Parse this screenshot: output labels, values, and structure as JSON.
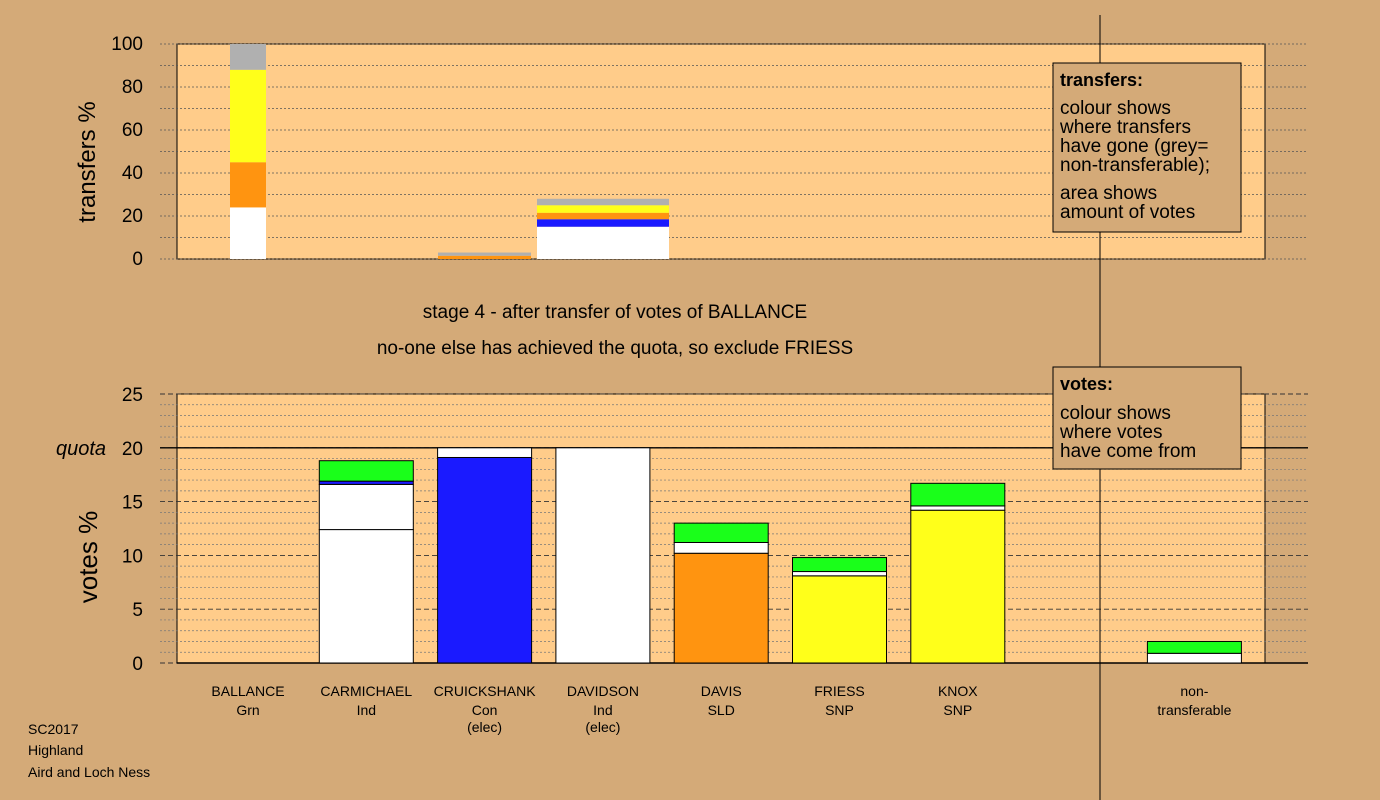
{
  "chart_data": [
    {
      "type": "bar",
      "stacked": true,
      "ylabel": "transfers %",
      "ylim": [
        0,
        100
      ],
      "yticks": [
        0,
        20,
        40,
        60,
        80,
        100
      ],
      "categories": [
        "BALLANCE",
        "CARMICHAEL",
        "CRUICKSHANK",
        "DAVIDSON",
        "DAVIS",
        "FRIESS",
        "KNOX",
        "non-transferable"
      ],
      "stacks": [
        {
          "category": "BALLANCE",
          "widths_rel": 0.37,
          "segments": [
            {
              "color": "#ffffff",
              "from": 0,
              "to": 24
            },
            {
              "color": "#ff9410",
              "from": 24,
              "to": 45
            },
            {
              "color": "#ffff1a",
              "from": 45,
              "to": 88
            },
            {
              "color": "#b0b0b0",
              "from": 88,
              "to": 100
            }
          ]
        },
        {
          "category": "CRUICKSHANK",
          "widths_rel": 1.0,
          "segments": [
            {
              "color": "#ff9410",
              "from": 0,
              "to": 1.5
            },
            {
              "color": "#b0b0b0",
              "from": 1.5,
              "to": 3
            }
          ]
        },
        {
          "category": "CRUICKSHANK-DAVIDSON",
          "widths_rel": 1.4,
          "segments": [
            {
              "color": "#ffffff",
              "from": 0,
              "to": 15
            },
            {
              "color": "#1a1aff",
              "from": 15,
              "to": 18.5
            },
            {
              "color": "#ff9410",
              "from": 18.5,
              "to": 21.5
            },
            {
              "color": "#ffff1a",
              "from": 21.5,
              "to": 25
            },
            {
              "color": "#b0b0b0",
              "from": 25,
              "to": 28
            }
          ]
        }
      ]
    },
    {
      "type": "bar",
      "stacked": true,
      "ylabel": "votes %",
      "ylim": [
        0,
        25
      ],
      "yticks": [
        0,
        5,
        10,
        15,
        20,
        25
      ],
      "quota": 20,
      "quota_label": "quota",
      "candidates": [
        {
          "name": "BALLANCE",
          "party": "Grn",
          "note": "",
          "segments": []
        },
        {
          "name": "CARMICHAEL",
          "party": "Ind",
          "note": "",
          "segments": [
            {
              "color": "#ffffff",
              "from": 0,
              "to": 12.4
            },
            {
              "color": "#ffffff",
              "from": 12.4,
              "to": 16.6
            },
            {
              "color": "#1a1aff",
              "from": 16.6,
              "to": 16.9
            },
            {
              "color": "#1aff1a",
              "from": 16.9,
              "to": 18.8
            }
          ]
        },
        {
          "name": "CRUICKSHANK",
          "party": "Con",
          "note": "(elec)",
          "segments": [
            {
              "color": "#1a1aff",
              "from": 0,
              "to": 19.1
            },
            {
              "color": "#ffffff",
              "from": 19.1,
              "to": 20.0
            }
          ]
        },
        {
          "name": "DAVIDSON",
          "party": "Ind",
          "note": "(elec)",
          "segments": [
            {
              "color": "#ffffff",
              "from": 0,
              "to": 20.0
            }
          ]
        },
        {
          "name": "DAVIS",
          "party": "SLD",
          "note": "",
          "segments": [
            {
              "color": "#ff9410",
              "from": 0,
              "to": 10.2
            },
            {
              "color": "#ffffff",
              "from": 10.2,
              "to": 11.2
            },
            {
              "color": "#1aff1a",
              "from": 11.2,
              "to": 13.0
            }
          ]
        },
        {
          "name": "FRIESS",
          "party": "SNP",
          "note": "",
          "segments": [
            {
              "color": "#ffff1a",
              "from": 0,
              "to": 8.1
            },
            {
              "color": "#ffffff",
              "from": 8.1,
              "to": 8.5
            },
            {
              "color": "#1aff1a",
              "from": 8.5,
              "to": 9.8
            }
          ]
        },
        {
          "name": "KNOX",
          "party": "SNP",
          "note": "",
          "segments": [
            {
              "color": "#ffff1a",
              "from": 0,
              "to": 14.2
            },
            {
              "color": "#ffffff",
              "from": 14.2,
              "to": 14.6
            },
            {
              "color": "#1aff1a",
              "from": 14.6,
              "to": 16.7
            }
          ]
        },
        {
          "name": "",
          "party": "",
          "note": "",
          "segments": []
        },
        {
          "name": "non-",
          "party": "transferable",
          "note": "",
          "segments": [
            {
              "color": "#ffffff",
              "from": 0,
              "to": 0.9
            },
            {
              "color": "#1aff1a",
              "from": 0.9,
              "to": 2.0
            }
          ]
        }
      ]
    }
  ],
  "stage_title": "stage 4 - after transfer of votes of BALLANCE",
  "stage_subtitle": "no-one else has achieved the quota, so exclude FRIESS",
  "transfers_box": {
    "title": "transfers:",
    "lines": [
      "colour shows",
      "where transfers",
      "have gone (grey=",
      "non-transferable);"
    ],
    "lines2": [
      "area shows",
      "amount of votes"
    ]
  },
  "votes_box": {
    "title": "votes:",
    "lines": [
      "colour shows",
      "where votes",
      "have come from"
    ]
  },
  "footer": [
    "SC2017",
    "Highland",
    "Aird and Loch Ness"
  ],
  "colors": {
    "background": "#d4aa78",
    "plot_area": "#ffcc8a"
  }
}
